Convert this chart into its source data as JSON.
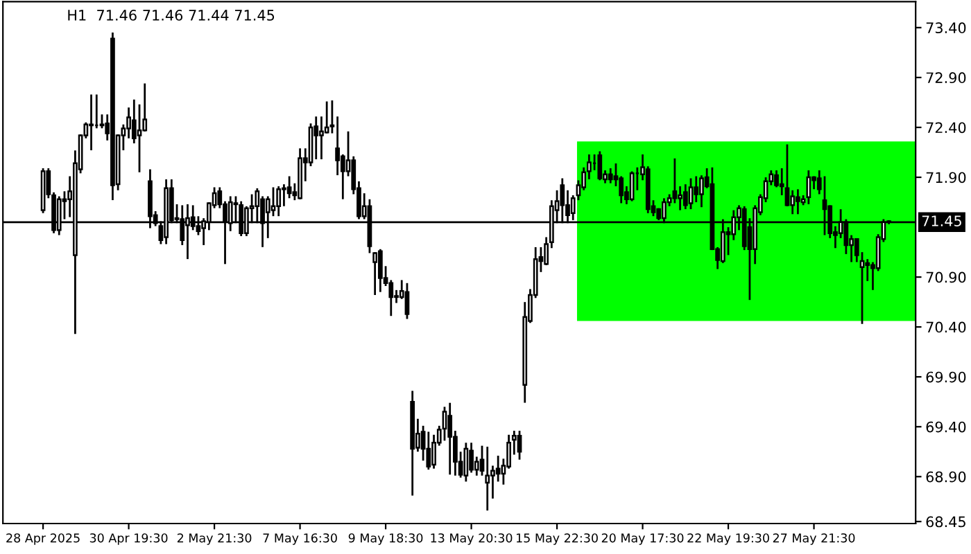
{
  "chart_data": {
    "type": "candlestick",
    "title": "H1  71.46 71.46 71.44 71.45",
    "categories": [
      "28 Apr 2025",
      null,
      null,
      null,
      null,
      null,
      null,
      null,
      null,
      null,
      null,
      null,
      null,
      null,
      null,
      null,
      "30 Apr 19:30",
      null,
      null,
      null,
      null,
      null,
      null,
      null,
      null,
      null,
      null,
      null,
      null,
      null,
      null,
      null,
      "2 May 21:30",
      null,
      null,
      null,
      null,
      null,
      null,
      null,
      null,
      null,
      null,
      null,
      null,
      null,
      null,
      null,
      "7 May 16:30",
      null,
      null,
      null,
      null,
      null,
      null,
      null,
      null,
      null,
      null,
      null,
      null,
      null,
      null,
      null,
      "9 May 18:30",
      null,
      null,
      null,
      null,
      null,
      null,
      null,
      null,
      null,
      null,
      null,
      null,
      null,
      null,
      null,
      "13 May 20:30",
      null,
      null,
      null,
      null,
      null,
      null,
      null,
      null,
      null,
      null,
      null,
      null,
      null,
      null,
      null,
      "15 May 22:30",
      null,
      null,
      null,
      null,
      null,
      null,
      null,
      null,
      null,
      null,
      null,
      null,
      null,
      null,
      null,
      "20 May 17:30",
      null,
      null,
      null,
      null,
      null,
      null,
      null,
      null,
      null,
      null,
      null,
      null,
      null,
      null,
      null,
      "22 May 19:30",
      null,
      null,
      null,
      null,
      null,
      null,
      null,
      null,
      null,
      null,
      null,
      null,
      null,
      null,
      null,
      "27 May 21:30",
      null,
      null,
      null,
      null,
      null,
      null,
      null,
      null,
      null,
      null,
      null,
      null,
      null,
      null
    ],
    "color": "#000000",
    "ohlc": [
      [
        71.57,
        71.98,
        71.55,
        71.96
      ],
      [
        71.96,
        71.98,
        71.7,
        71.73
      ],
      [
        71.72,
        71.74,
        71.35,
        71.37
      ],
      [
        71.37,
        71.7,
        71.33,
        71.68
      ],
      [
        71.68,
        71.75,
        71.49,
        71.66
      ],
      [
        71.68,
        71.9,
        71.51,
        71.76
      ],
      [
        71.12,
        72.16,
        70.34,
        72.04
      ],
      [
        71.98,
        72.32,
        71.95,
        72.32
      ],
      [
        72.32,
        72.44,
        72.3,
        72.43
      ],
      [
        72.42,
        72.72,
        72.18,
        72.43
      ],
      [
        72.42,
        72.72,
        72.4,
        72.42
      ],
      [
        72.43,
        72.52,
        72.4,
        72.42
      ],
      [
        72.44,
        72.52,
        72.28,
        72.34
      ],
      [
        73.29,
        73.34,
        71.68,
        71.82
      ],
      [
        71.83,
        72.32,
        71.78,
        72.32
      ],
      [
        72.32,
        72.42,
        72.18,
        72.39
      ],
      [
        72.39,
        72.59,
        72.3,
        72.5
      ],
      [
        72.47,
        72.67,
        72.25,
        72.29
      ],
      [
        72.32,
        72.62,
        71.96,
        72.37
      ],
      [
        72.37,
        72.83,
        72.37,
        72.48
      ],
      [
        71.86,
        71.97,
        71.4,
        71.51
      ],
      [
        71.52,
        71.55,
        71.42,
        71.44
      ],
      [
        71.41,
        71.45,
        71.24,
        71.27
      ],
      [
        71.3,
        71.87,
        71.24,
        71.79
      ],
      [
        71.79,
        71.87,
        71.45,
        71.47
      ],
      [
        71.48,
        71.62,
        71.45,
        71.49
      ],
      [
        71.48,
        71.61,
        71.23,
        71.27
      ],
      [
        71.42,
        71.62,
        71.09,
        71.49
      ],
      [
        71.5,
        71.61,
        71.38,
        71.41
      ],
      [
        71.41,
        71.5,
        71.33,
        71.36
      ],
      [
        71.39,
        71.48,
        71.23,
        71.46
      ],
      [
        71.45,
        71.64,
        71.38,
        71.64
      ],
      [
        71.62,
        71.79,
        71.6,
        71.74
      ],
      [
        71.76,
        71.79,
        71.6,
        71.63
      ],
      [
        71.63,
        71.65,
        71.04,
        71.45
      ],
      [
        71.44,
        71.7,
        71.37,
        71.65
      ],
      [
        71.64,
        71.7,
        71.45,
        71.63
      ],
      [
        71.62,
        71.65,
        71.32,
        71.34
      ],
      [
        71.34,
        71.6,
        71.32,
        71.59
      ],
      [
        71.59,
        71.72,
        71.45,
        71.61
      ],
      [
        71.61,
        71.78,
        71.45,
        71.76
      ],
      [
        71.68,
        71.7,
        71.21,
        71.44
      ],
      [
        71.55,
        71.7,
        71.3,
        71.68
      ],
      [
        71.57,
        71.79,
        71.52,
        71.61
      ],
      [
        71.61,
        71.8,
        71.52,
        71.78
      ],
      [
        71.78,
        71.82,
        71.62,
        71.79
      ],
      [
        71.8,
        71.9,
        71.7,
        71.74
      ],
      [
        71.75,
        71.83,
        71.68,
        71.72
      ],
      [
        71.69,
        72.18,
        71.69,
        72.09
      ],
      [
        72.09,
        72.18,
        71.87,
        72.05
      ],
      [
        72.05,
        72.43,
        72.02,
        72.4
      ],
      [
        72.41,
        72.5,
        72.09,
        72.32
      ],
      [
        72.32,
        72.5,
        72.09,
        72.36
      ],
      [
        72.35,
        72.65,
        72.35,
        72.4
      ],
      [
        72.42,
        72.66,
        72.35,
        72.41
      ],
      [
        72.19,
        72.5,
        71.93,
        72.07
      ],
      [
        72.11,
        72.12,
        71.69,
        71.96
      ],
      [
        71.96,
        72.35,
        71.92,
        72.07
      ],
      [
        72.07,
        72.1,
        71.74,
        71.78
      ],
      [
        71.79,
        71.85,
        71.49,
        71.51
      ],
      [
        71.51,
        71.73,
        71.49,
        71.61
      ],
      [
        71.61,
        71.67,
        71.15,
        71.21
      ],
      [
        71.05,
        71.14,
        70.73,
        71.14
      ],
      [
        71.16,
        71.17,
        70.76,
        70.89
      ],
      [
        70.89,
        71.0,
        70.82,
        70.84
      ],
      [
        70.84,
        70.86,
        70.52,
        70.7
      ],
      [
        70.7,
        70.76,
        70.65,
        70.71
      ],
      [
        70.7,
        70.86,
        70.69,
        70.76
      ],
      [
        70.75,
        70.83,
        70.49,
        70.53
      ],
      [
        69.65,
        69.75,
        68.72,
        69.18
      ],
      [
        69.19,
        69.47,
        69.16,
        69.33
      ],
      [
        69.35,
        69.4,
        69.07,
        69.18
      ],
      [
        69.18,
        69.34,
        68.98,
        69.0
      ],
      [
        69.02,
        69.31,
        68.99,
        69.24
      ],
      [
        69.24,
        69.4,
        69.22,
        69.37
      ],
      [
        69.38,
        69.59,
        69.27,
        69.55
      ],
      [
        69.51,
        69.63,
        68.93,
        69.3
      ],
      [
        69.3,
        69.35,
        68.92,
        69.05
      ],
      [
        69.05,
        69.14,
        68.9,
        68.92
      ],
      [
        68.91,
        69.23,
        68.86,
        69.18
      ],
      [
        69.16,
        69.23,
        68.95,
        68.97
      ],
      [
        68.97,
        69.09,
        68.92,
        69.05
      ],
      [
        69.07,
        69.2,
        68.92,
        68.96
      ],
      [
        68.84,
        69.19,
        68.57,
        68.91
      ],
      [
        68.91,
        69.0,
        68.69,
        68.96
      ],
      [
        68.98,
        69.1,
        68.86,
        68.93
      ],
      [
        68.93,
        69.07,
        68.83,
        69.01
      ],
      [
        69.0,
        69.31,
        68.99,
        69.24
      ],
      [
        69.27,
        69.35,
        69.13,
        69.31
      ],
      [
        69.31,
        69.35,
        69.08,
        69.15
      ],
      [
        69.82,
        70.64,
        69.65,
        70.5
      ],
      [
        70.46,
        70.77,
        70.45,
        70.72
      ],
      [
        70.72,
        71.19,
        70.7,
        71.08
      ],
      [
        71.1,
        71.19,
        70.96,
        71.06
      ],
      [
        71.03,
        71.29,
        71.03,
        71.23
      ],
      [
        71.25,
        71.66,
        71.2,
        71.61
      ],
      [
        71.57,
        71.76,
        71.45,
        71.66
      ],
      [
        71.82,
        71.88,
        71.45,
        71.62
      ],
      [
        71.62,
        71.76,
        71.45,
        71.52
      ],
      [
        71.54,
        71.71,
        71.48,
        71.69
      ],
      [
        71.72,
        71.86,
        71.68,
        71.82
      ],
      [
        71.8,
        71.99,
        71.78,
        71.95
      ],
      [
        71.96,
        72.12,
        71.89,
        72.05
      ],
      [
        72.04,
        72.12,
        71.98,
        72.04
      ],
      [
        72.12,
        72.15,
        71.88,
        71.89
      ],
      [
        71.88,
        71.96,
        71.85,
        71.93
      ],
      [
        71.93,
        71.98,
        71.85,
        71.88
      ],
      [
        71.91,
        72.03,
        71.82,
        71.88
      ],
      [
        71.89,
        71.9,
        71.65,
        71.72
      ],
      [
        71.75,
        71.8,
        71.64,
        71.68
      ],
      [
        71.68,
        71.95,
        71.67,
        71.94
      ],
      [
        71.94,
        71.99,
        71.78,
        71.94
      ],
      [
        71.93,
        72.12,
        71.88,
        72.0
      ],
      [
        71.98,
        72.0,
        71.55,
        71.58
      ],
      [
        71.61,
        71.66,
        71.52,
        71.55
      ],
      [
        71.58,
        71.58,
        71.48,
        71.49
      ],
      [
        71.49,
        71.68,
        71.45,
        71.65
      ],
      [
        71.65,
        71.72,
        71.62,
        71.69
      ],
      [
        71.76,
        72.08,
        71.65,
        71.69
      ],
      [
        71.69,
        71.8,
        71.58,
        71.72
      ],
      [
        71.75,
        71.82,
        71.59,
        71.62
      ],
      [
        71.64,
        71.88,
        71.59,
        71.8
      ],
      [
        71.8,
        71.9,
        71.66,
        71.73
      ],
      [
        71.73,
        71.91,
        71.61,
        71.89
      ],
      [
        71.9,
        71.98,
        71.8,
        71.81
      ],
      [
        71.83,
        71.99,
        71.18,
        71.18
      ],
      [
        71.18,
        71.19,
        70.99,
        71.07
      ],
      [
        71.06,
        71.47,
        71.05,
        71.35
      ],
      [
        71.35,
        71.39,
        71.13,
        71.33
      ],
      [
        71.33,
        71.56,
        71.28,
        71.5
      ],
      [
        71.5,
        71.61,
        71.38,
        71.59
      ],
      [
        71.58,
        71.6,
        71.18,
        71.21
      ],
      [
        71.4,
        71.48,
        70.68,
        71.18
      ],
      [
        71.18,
        71.61,
        71.04,
        71.59
      ],
      [
        71.55,
        71.72,
        71.53,
        71.7
      ],
      [
        71.69,
        71.89,
        71.66,
        71.86
      ],
      [
        71.86,
        71.96,
        71.83,
        71.93
      ],
      [
        71.92,
        71.96,
        71.81,
        71.82
      ],
      [
        71.83,
        71.98,
        71.73,
        71.81
      ],
      [
        71.79,
        72.22,
        71.62,
        71.62
      ],
      [
        71.62,
        71.76,
        71.54,
        71.71
      ],
      [
        71.7,
        71.77,
        71.54,
        71.66
      ],
      [
        71.65,
        71.71,
        71.63,
        71.68
      ],
      [
        71.7,
        71.96,
        71.64,
        71.9
      ],
      [
        71.9,
        71.9,
        71.79,
        71.87
      ],
      [
        71.89,
        71.96,
        71.74,
        71.78
      ],
      [
        71.67,
        71.9,
        71.33,
        71.58
      ],
      [
        71.61,
        71.61,
        71.3,
        71.34
      ],
      [
        71.35,
        71.4,
        71.2,
        71.32
      ],
      [
        71.34,
        71.57,
        71.3,
        71.45
      ],
      [
        71.45,
        71.47,
        71.14,
        71.22
      ],
      [
        71.22,
        71.31,
        71.06,
        71.28
      ],
      [
        71.28,
        71.28,
        71.06,
        71.12
      ],
      [
        71.0,
        71.14,
        70.44,
        71.06
      ],
      [
        71.04,
        71.07,
        70.87,
        71.02
      ],
      [
        71.02,
        71.04,
        70.78,
        70.99
      ],
      [
        70.99,
        71.32,
        70.97,
        71.3
      ],
      [
        71.28,
        71.47,
        71.26,
        71.45
      ],
      [
        71.46,
        71.46,
        71.44,
        71.45
      ]
    ],
    "ylim": [
      68.43,
      73.66
    ],
    "yticks": [
      {
        "value": 68.45,
        "label": "68.45"
      },
      {
        "value": 68.9,
        "label": "68.90"
      },
      {
        "value": 69.4,
        "label": "69.40"
      },
      {
        "value": 69.9,
        "label": "69.90"
      },
      {
        "value": 70.4,
        "label": "70.40"
      },
      {
        "value": 70.9,
        "label": "70.90"
      },
      {
        "value": 71.9,
        "label": "71.90"
      },
      {
        "value": 72.4,
        "label": "72.40"
      },
      {
        "value": 72.9,
        "label": "72.90"
      },
      {
        "value": 73.4,
        "label": "73.40"
      }
    ],
    "ref_lines": [
      {
        "axis": "y",
        "value": 71.45,
        "label": "71.45",
        "color": "#000000"
      }
    ],
    "bands": [
      {
        "axis": "y",
        "from": 70.46,
        "to": 72.26,
        "color": "#00ff00"
      }
    ],
    "grid": false,
    "legend": false
  }
}
